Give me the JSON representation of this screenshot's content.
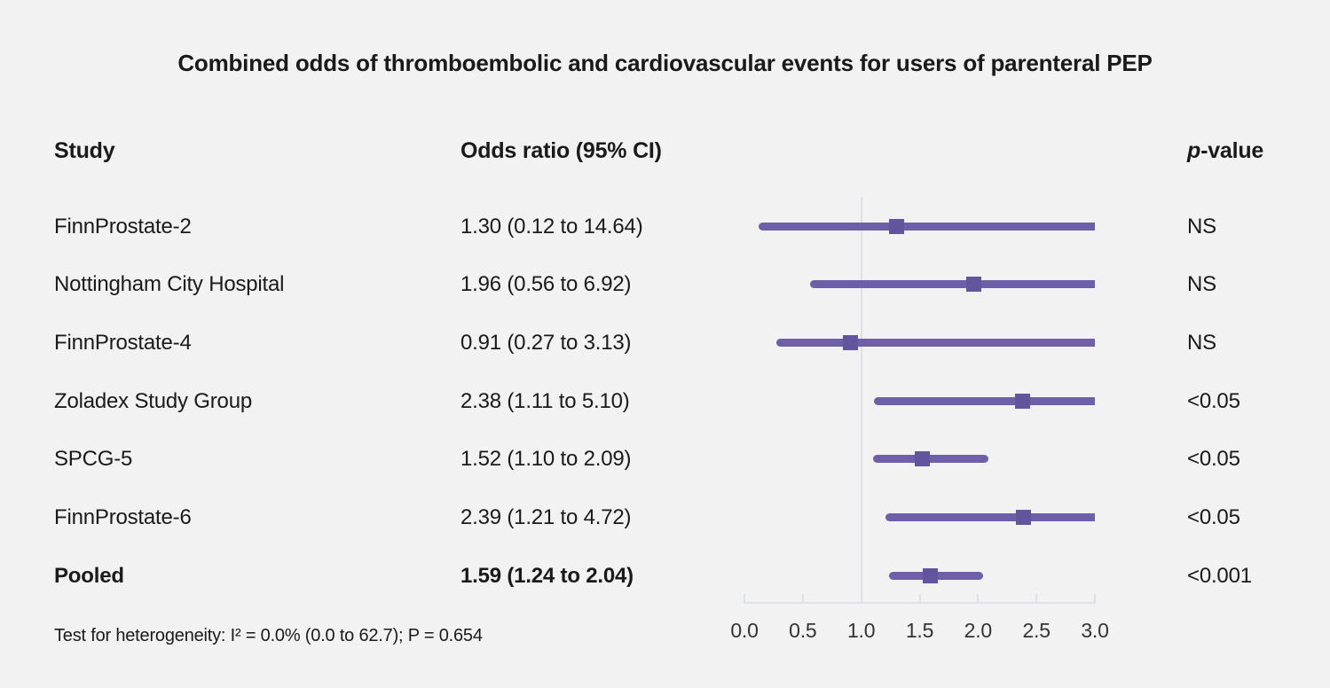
{
  "title": "Combined odds of thromboembolic and cardiovascular events for users of parenteral PEP",
  "columns": {
    "study": "Study",
    "odds_ratio": "Odds ratio (95% CI)",
    "p_value_italic": "p",
    "p_value_rest": "-value"
  },
  "footer": "Test for heterogeneity: I² = 0.0% (0.0 to 62.7); P = 0.654",
  "colors": {
    "background": "#f2f2f2",
    "ci_line": "#6e5fa8",
    "marker": "#63549e",
    "axis": "#dce0e7",
    "text": "#1a1a1a",
    "axis_label": "#333333"
  },
  "chart_data": {
    "type": "forest",
    "title": "Combined odds of thromboembolic and cardiovascular events for users of parenteral PEP",
    "x_axis": {
      "min": 0,
      "max": 3,
      "ticks": [
        0,
        0.5,
        1,
        1.5,
        2,
        2.5,
        3
      ],
      "tick_labels": [
        "0.0",
        "0.5",
        "1.0",
        "1.5",
        "2.0",
        "2.5",
        "3.0"
      ],
      "reference_line": 1.0,
      "clip_max": 3.0
    },
    "rows": [
      {
        "study": "FinnProstate-2",
        "or": 1.3,
        "ci_low": 0.12,
        "ci_high": 14.64,
        "or_label": "1.30 (0.12 to 14.64)",
        "p_value": "NS",
        "bold": false
      },
      {
        "study": "Nottingham City Hospital",
        "or": 1.96,
        "ci_low": 0.56,
        "ci_high": 6.92,
        "or_label": "1.96 (0.56 to 6.92)",
        "p_value": "NS",
        "bold": false
      },
      {
        "study": "FinnProstate-4",
        "or": 0.91,
        "ci_low": 0.27,
        "ci_high": 3.13,
        "or_label": "0.91 (0.27 to 3.13)",
        "p_value": "NS",
        "bold": false
      },
      {
        "study": "Zoladex Study Group",
        "or": 2.38,
        "ci_low": 1.11,
        "ci_high": 5.1,
        "or_label": "2.38 (1.11 to 5.10)",
        "p_value": "<0.05",
        "bold": false
      },
      {
        "study": "SPCG-5",
        "or": 1.52,
        "ci_low": 1.1,
        "ci_high": 2.09,
        "or_label": "1.52 (1.10 to 2.09)",
        "p_value": "<0.05",
        "bold": false
      },
      {
        "study": "FinnProstate-6",
        "or": 2.39,
        "ci_low": 1.21,
        "ci_high": 4.72,
        "or_label": "2.39 (1.21 to 4.72)",
        "p_value": "<0.05",
        "bold": false
      },
      {
        "study": "Pooled",
        "or": 1.59,
        "ci_low": 1.24,
        "ci_high": 2.04,
        "or_label": "1.59 (1.24 to 2.04)",
        "p_value": "<0.001",
        "bold": true
      }
    ]
  }
}
